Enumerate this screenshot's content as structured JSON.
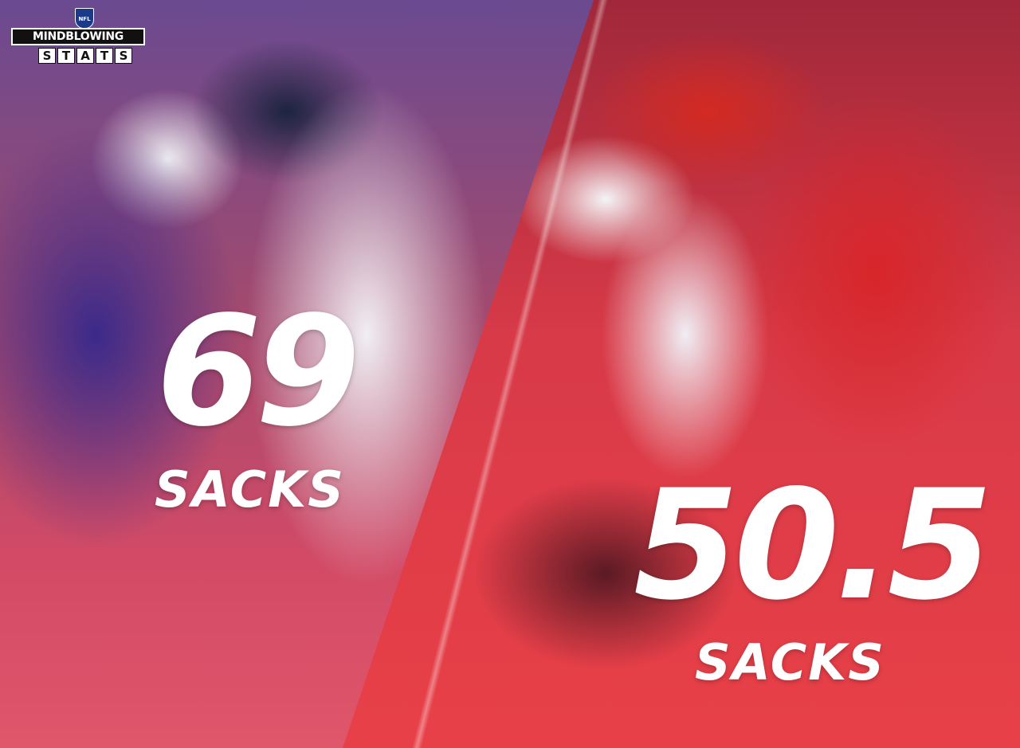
{
  "logo": {
    "league": "NFL",
    "line1": "MINDBLOWING",
    "line2": [
      "S",
      "T",
      "A",
      "T",
      "S"
    ]
  },
  "left": {
    "value": "69",
    "label": "SACKS"
  },
  "right": {
    "value": "50.5",
    "label": "SACKS"
  },
  "colors": {
    "left_tint": "#6a4a90",
    "right_tint": "#d83a48",
    "text": "#ffffff"
  }
}
